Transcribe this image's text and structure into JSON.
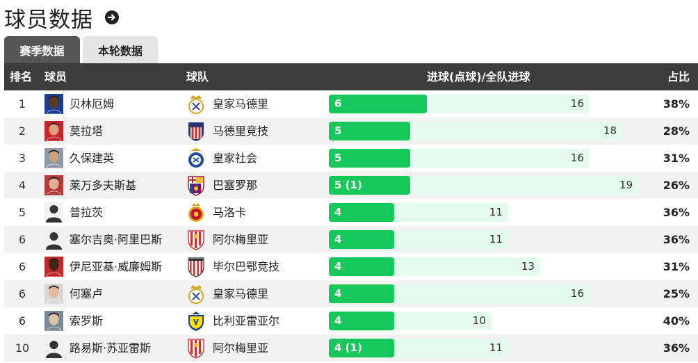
{
  "page": {
    "title": "球员数据",
    "arrow_icon": "arrow-circle-right-icon"
  },
  "tabs": [
    {
      "label": "赛季数据",
      "active": true
    },
    {
      "label": "本轮数据",
      "active": false
    }
  ],
  "table": {
    "headers": {
      "rank": "排名",
      "player": "球员",
      "team": "球队",
      "goals": "进球(点球)/全队进球",
      "ratio": "占比"
    },
    "colors": {
      "fill": "#16c75a",
      "track": "#e5fbef",
      "header_bg": "#3c3c3c"
    },
    "rows": [
      {
        "rank": "1",
        "player": "贝林厄姆",
        "team": "皇家马德里",
        "goals_label": "6",
        "goals": 6,
        "team_goals": 16,
        "ratio": "38%",
        "avatar": "face-dark",
        "crest": "real-madrid"
      },
      {
        "rank": "2",
        "player": "莫拉塔",
        "team": "马德里竞技",
        "goals_label": "5",
        "goals": 5,
        "team_goals": 18,
        "ratio": "28%",
        "avatar": "face-red",
        "crest": "atletico"
      },
      {
        "rank": "3",
        "player": "久保建英",
        "team": "皇家社会",
        "goals_label": "5",
        "goals": 5,
        "team_goals": 16,
        "ratio": "31%",
        "avatar": "face-dark2",
        "crest": "real-sociedad"
      },
      {
        "rank": "4",
        "player": "莱万多夫斯基",
        "team": "巴塞罗那",
        "goals_label": "5 (1)",
        "goals": 5,
        "team_goals": 19,
        "ratio": "26%",
        "avatar": "face-red2",
        "crest": "barcelona"
      },
      {
        "rank": "5",
        "player": "普拉茨",
        "team": "马洛卡",
        "goals_label": "4",
        "goals": 4,
        "team_goals": 11,
        "ratio": "36%",
        "avatar": "silhouette",
        "crest": "mallorca"
      },
      {
        "rank": "6",
        "player": "塞尔吉奥·阿里巴斯",
        "team": "阿尔梅里亚",
        "goals_label": "4",
        "goals": 4,
        "team_goals": 11,
        "ratio": "36%",
        "avatar": "silhouette",
        "crest": "almeria"
      },
      {
        "rank": "6",
        "player": "伊尼亚基·威廉姆斯",
        "team": "毕尔巴鄂竞技",
        "goals_label": "4",
        "goals": 4,
        "team_goals": 13,
        "ratio": "31%",
        "avatar": "face-dark3",
        "crest": "athletic"
      },
      {
        "rank": "6",
        "player": "何塞卢",
        "team": "皇家马德里",
        "goals_label": "4",
        "goals": 4,
        "team_goals": 16,
        "ratio": "25%",
        "avatar": "face-red3",
        "crest": "real-madrid"
      },
      {
        "rank": "6",
        "player": "索罗斯",
        "team": "比利亚雷亚尔",
        "goals_label": "4",
        "goals": 4,
        "team_goals": 10,
        "ratio": "40%",
        "avatar": "face-grey",
        "crest": "villarreal"
      },
      {
        "rank": "10",
        "player": "路易斯·苏亚雷斯",
        "team": "阿尔梅里亚",
        "goals_label": "4 (1)",
        "goals": 4,
        "team_goals": 11,
        "ratio": "36%",
        "avatar": "silhouette",
        "crest": "almeria"
      }
    ]
  }
}
